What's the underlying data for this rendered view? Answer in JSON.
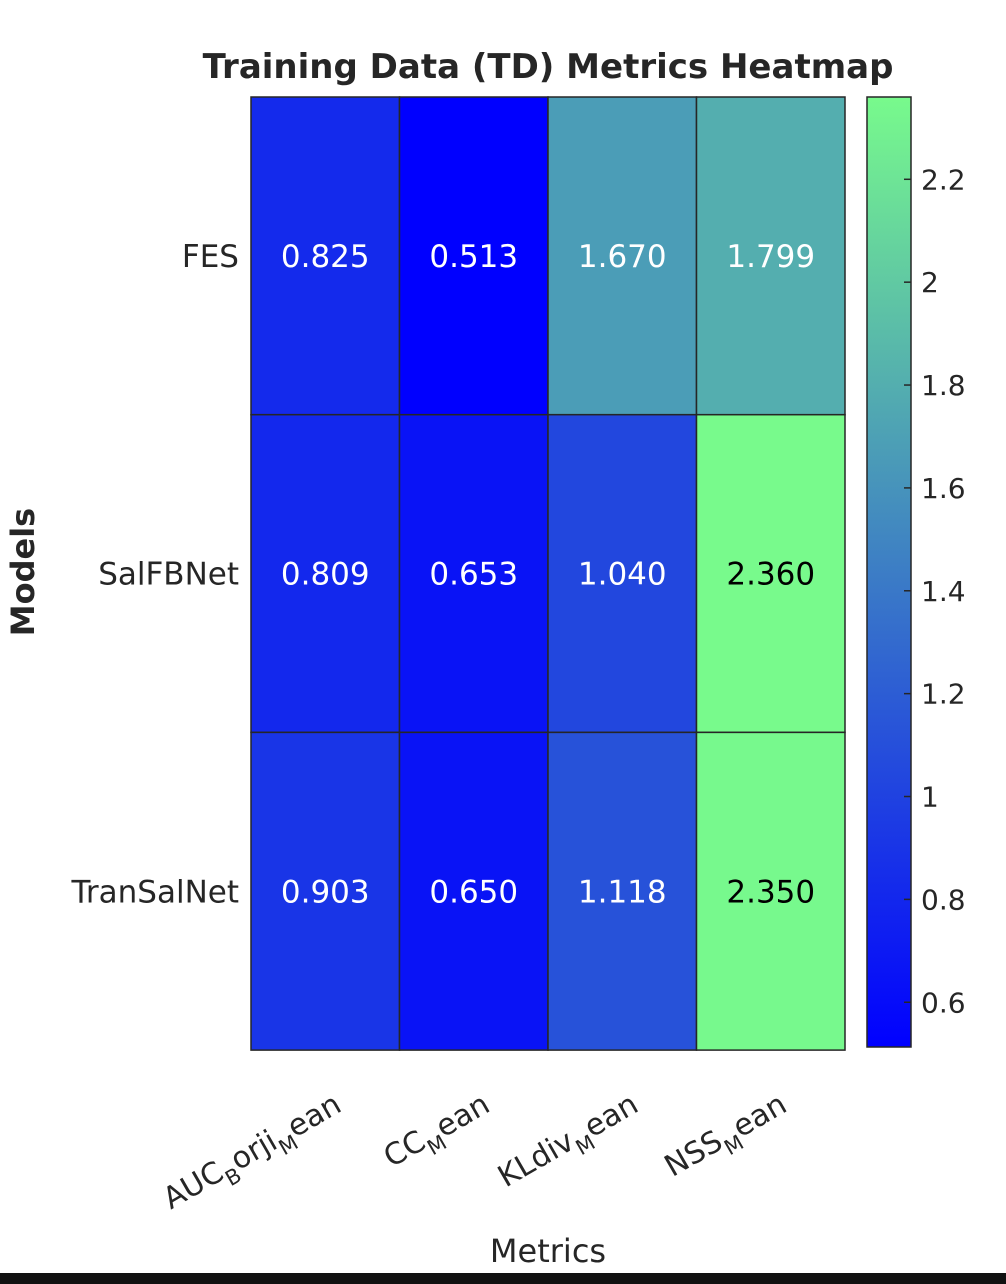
{
  "chart_data": {
    "type": "heatmap",
    "title": "Training Data (TD) Metrics Heatmap",
    "xlabel": "Metrics",
    "ylabel": "Models",
    "columns": [
      {
        "base": "AUC",
        "parts": [
          [
            "B",
            "sub"
          ],
          [
            "orji",
            "base"
          ],
          [
            "M",
            "sub"
          ],
          [
            "ean",
            "base"
          ]
        ]
      },
      {
        "base": "CC",
        "parts": [
          [
            "M",
            "sub"
          ],
          [
            "ean",
            "base"
          ]
        ]
      },
      {
        "base": "KLdiv",
        "parts": [
          [
            "M",
            "sub"
          ],
          [
            "ean",
            "base"
          ]
        ]
      },
      {
        "base": "NSS",
        "parts": [
          [
            "M",
            "sub"
          ],
          [
            "ean",
            "base"
          ]
        ]
      }
    ],
    "rows": [
      "FES",
      "SalFBNet",
      "TranSalNet"
    ],
    "values": [
      [
        0.825,
        0.513,
        1.67,
        1.799
      ],
      [
        0.809,
        0.653,
        1.04,
        2.36
      ],
      [
        0.903,
        0.65,
        1.118,
        2.35
      ]
    ],
    "value_labels": [
      [
        "0.825",
        "0.513",
        "1.670",
        "1.799"
      ],
      [
        "0.809",
        "0.653",
        "1.040",
        "2.360"
      ],
      [
        "0.903",
        "0.650",
        "1.118",
        "2.350"
      ]
    ],
    "colorbar": {
      "min": 0.513,
      "max": 2.36,
      "ticks": [
        0.6,
        0.8,
        1,
        1.2,
        1.4,
        1.6,
        1.8,
        2,
        2.2
      ],
      "tick_labels": [
        "0.6",
        "0.8",
        "1",
        "1.2",
        "1.4",
        "1.6",
        "1.8",
        "2",
        "2.2"
      ],
      "colormap": [
        "#0000ff",
        "#78fa8c"
      ]
    }
  }
}
